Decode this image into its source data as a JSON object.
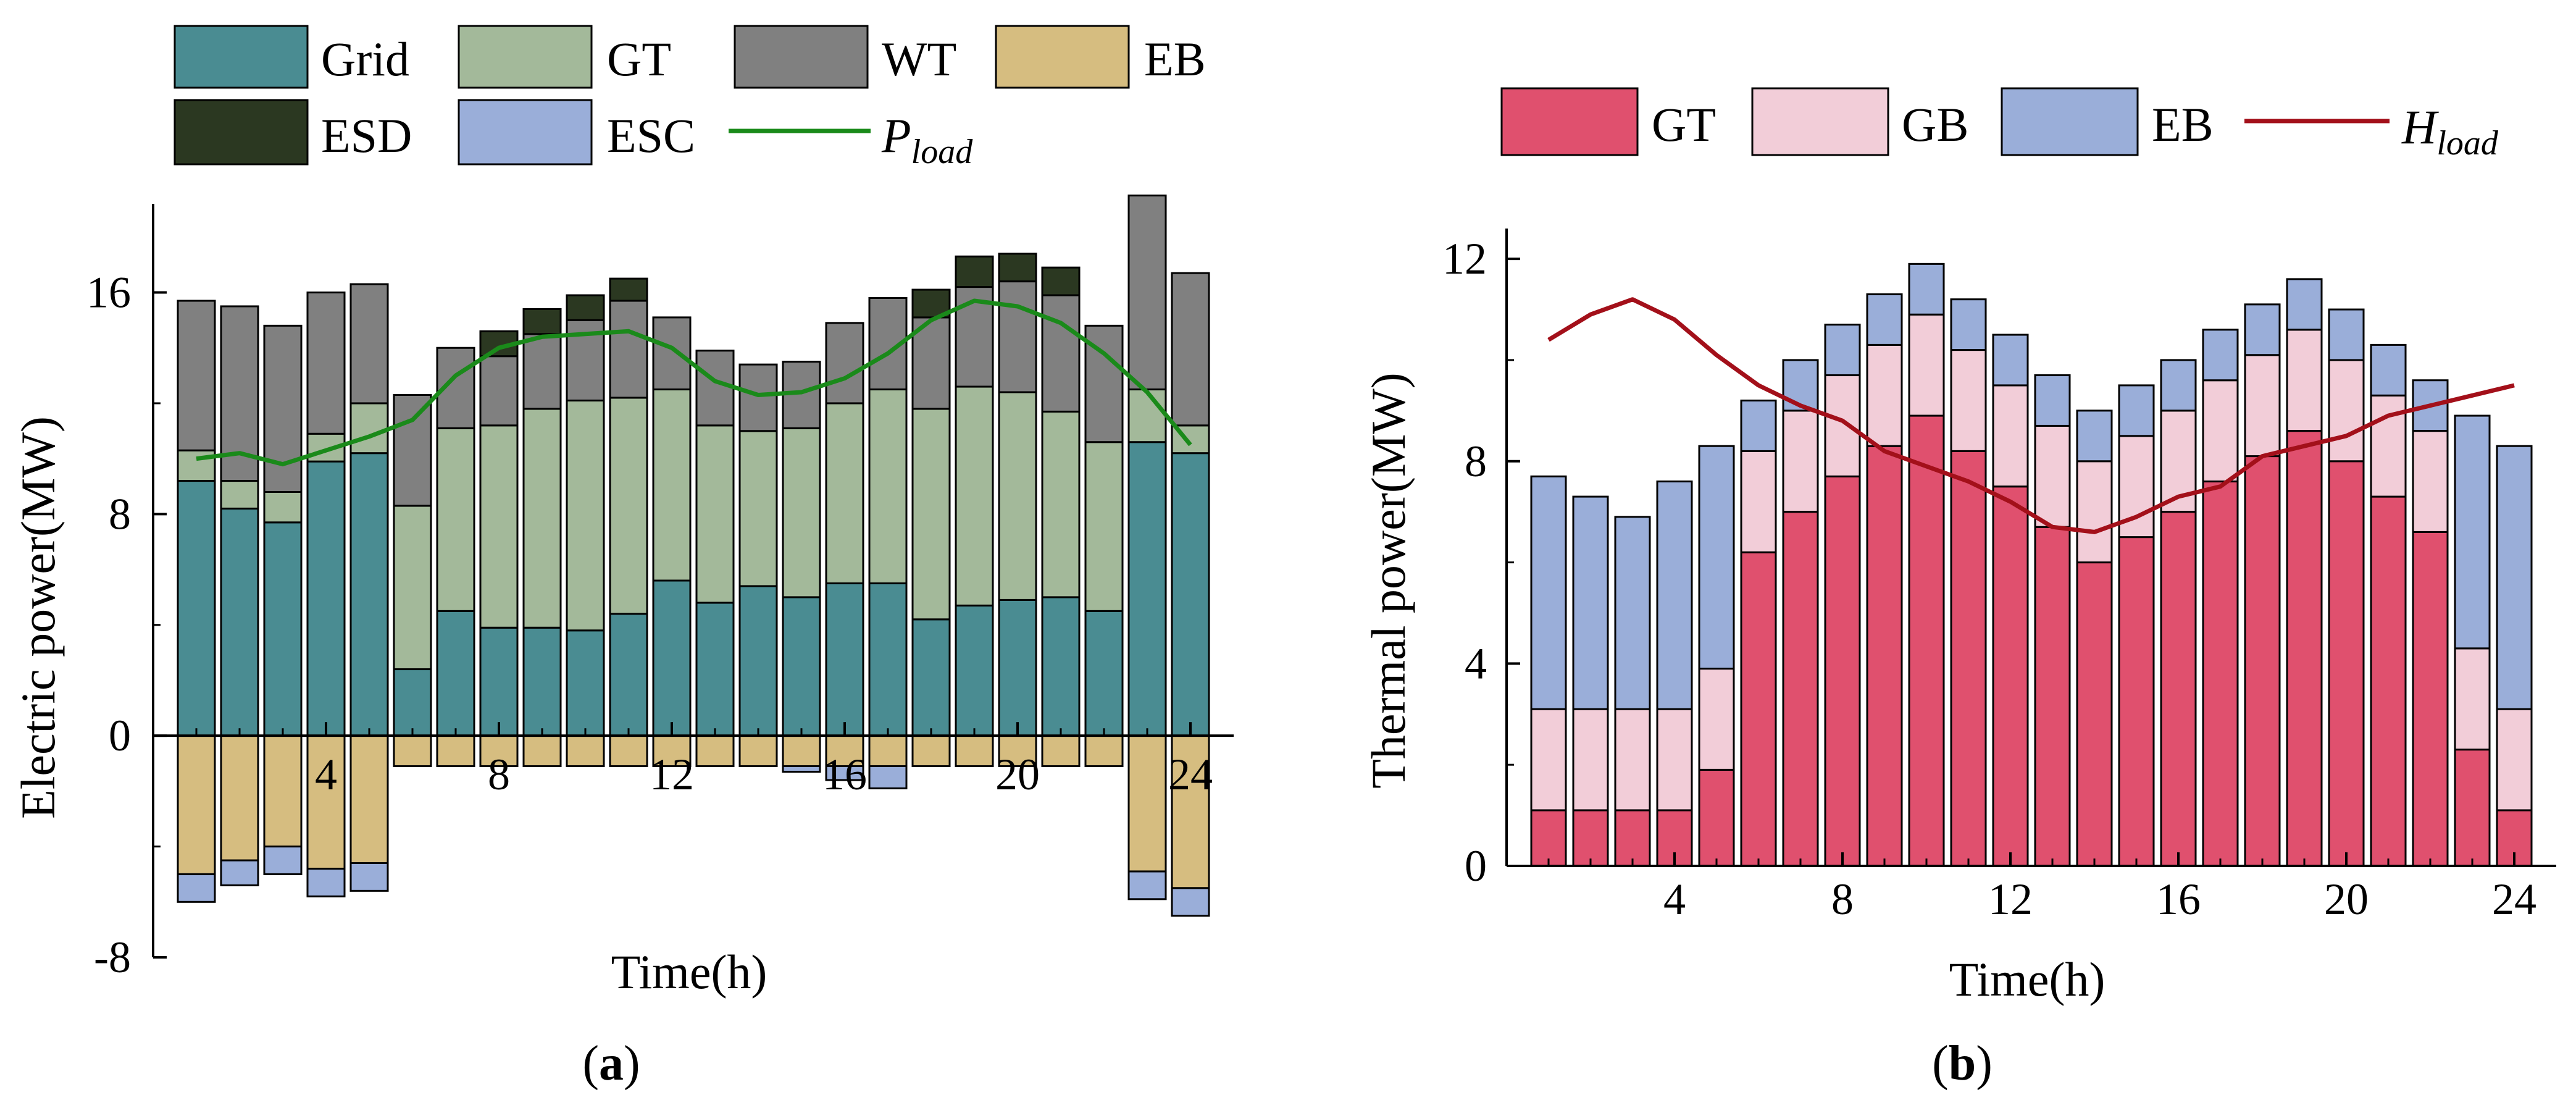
{
  "chart_data": [
    {
      "panel": "a",
      "type": "bar",
      "stacked": true,
      "title": "",
      "xlabel": "Time(h)",
      "ylabel": "Electric power(MW)",
      "xlim": [
        0,
        25
      ],
      "ylim": [
        -8,
        19.2
      ],
      "xticks": [
        4,
        8,
        12,
        16,
        20,
        24
      ],
      "xtick_labels": [
        "4",
        "8",
        "12",
        "16",
        "20",
        "24"
      ],
      "yticks": [
        -8,
        0,
        8,
        16
      ],
      "ytick_labels": [
        "-8",
        "0",
        "8",
        "16"
      ],
      "legend": [
        "Grid",
        "GT",
        "WT",
        "EB",
        "ESD",
        "ESC",
        "P_load"
      ],
      "legend_position": "top",
      "x": [
        1,
        2,
        3,
        4,
        5,
        6,
        7,
        8,
        9,
        10,
        11,
        12,
        13,
        14,
        15,
        16,
        17,
        18,
        19,
        20,
        21,
        22,
        23,
        24
      ],
      "series": [
        {
          "name": "Grid",
          "color": "#4a8c92",
          "values": [
            9.2,
            8.2,
            7.7,
            9.9,
            10.2,
            2.4,
            4.5,
            3.9,
            3.9,
            3.8,
            4.4,
            5.6,
            4.8,
            5.4,
            5.0,
            5.5,
            5.5,
            4.2,
            4.7,
            4.9,
            5.0,
            4.5,
            10.6,
            10.2
          ]
        },
        {
          "name": "GT",
          "color": "#a3b99a",
          "values": [
            1.1,
            1.0,
            1.1,
            1.0,
            1.8,
            5.9,
            6.6,
            7.3,
            7.9,
            8.3,
            7.8,
            6.9,
            6.4,
            5.6,
            6.1,
            6.5,
            7.0,
            7.6,
            7.9,
            7.5,
            6.7,
            6.1,
            1.9,
            1.0
          ]
        },
        {
          "name": "WT",
          "color": "#808080",
          "values": [
            5.4,
            6.3,
            6.0,
            5.1,
            4.3,
            4.0,
            2.9,
            2.5,
            2.7,
            2.9,
            3.5,
            2.6,
            2.7,
            2.4,
            2.4,
            2.9,
            3.3,
            3.3,
            3.6,
            4.0,
            4.2,
            4.2,
            7.0,
            5.5
          ]
        },
        {
          "name": "ESD",
          "color": "#2b3821",
          "values": [
            0,
            0,
            0,
            0,
            0,
            0,
            0,
            0.9,
            0.9,
            0.9,
            0.8,
            0,
            0,
            0,
            0,
            0,
            0,
            1.0,
            1.1,
            1.0,
            1.0,
            0,
            0,
            0
          ]
        },
        {
          "name": "EB",
          "color": "#d6bd80",
          "values": [
            -5.0,
            -4.5,
            -4.0,
            -4.8,
            -4.6,
            -1.1,
            -1.1,
            -1.1,
            -1.1,
            -1.1,
            -1.1,
            -1.1,
            -1.1,
            -1.1,
            -1.1,
            -1.1,
            -1.1,
            -1.1,
            -1.1,
            -1.1,
            -1.1,
            -1.1,
            -4.9,
            -5.5
          ]
        },
        {
          "name": "ESC",
          "color": "#9aaed9",
          "values": [
            -1.0,
            -0.9,
            -1.0,
            -1.0,
            -1.0,
            0,
            0,
            0,
            0,
            0,
            0,
            0,
            0,
            0,
            -0.2,
            -0.5,
            -0.8,
            0,
            0,
            0,
            0,
            0,
            -1.0,
            -1.0
          ]
        }
      ],
      "line": {
        "name": "P_load",
        "color": "#1a8a1a",
        "values": [
          10.0,
          10.2,
          9.8,
          10.3,
          10.8,
          11.4,
          13.0,
          14.0,
          14.4,
          14.5,
          14.6,
          14.0,
          12.8,
          12.3,
          12.4,
          12.9,
          13.8,
          15.0,
          15.7,
          15.5,
          14.9,
          13.8,
          12.4,
          10.5
        ]
      }
    },
    {
      "panel": "b",
      "type": "bar",
      "stacked": true,
      "title": "",
      "xlabel": "Time(h)",
      "ylabel": "Thermal power(MW)",
      "xlim": [
        0,
        25
      ],
      "ylim": [
        0,
        12.6
      ],
      "xticks": [
        4,
        8,
        12,
        16,
        20,
        24
      ],
      "xtick_labels": [
        "4",
        "8",
        "12",
        "16",
        "20",
        "24"
      ],
      "yticks": [
        0,
        4,
        8,
        12
      ],
      "ytick_labels": [
        "0",
        "4",
        "8",
        "12"
      ],
      "legend": [
        "GT",
        "GB",
        "EB",
        "H_load"
      ],
      "legend_position": "top",
      "x": [
        1,
        2,
        3,
        4,
        5,
        6,
        7,
        8,
        9,
        10,
        11,
        12,
        13,
        14,
        15,
        16,
        17,
        18,
        19,
        20,
        21,
        22,
        23,
        24
      ],
      "series": [
        {
          "name": "GT",
          "color": "#e0506e",
          "values": [
            1.1,
            1.1,
            1.1,
            1.1,
            1.9,
            6.2,
            7.0,
            7.7,
            8.3,
            8.9,
            8.2,
            7.5,
            6.7,
            6.0,
            6.5,
            7.0,
            7.6,
            8.1,
            8.6,
            8.0,
            7.3,
            6.6,
            2.3,
            1.1
          ]
        },
        {
          "name": "GB",
          "color": "#f2cdd8",
          "values": [
            2.0,
            2.0,
            2.0,
            2.0,
            2.0,
            2.0,
            2.0,
            2.0,
            2.0,
            2.0,
            2.0,
            2.0,
            2.0,
            2.0,
            2.0,
            2.0,
            2.0,
            2.0,
            2.0,
            2.0,
            2.0,
            2.0,
            2.0,
            2.0
          ]
        },
        {
          "name": "EB",
          "color": "#9aaed9",
          "values": [
            4.6,
            4.2,
            3.8,
            4.5,
            4.4,
            1.0,
            1.0,
            1.0,
            1.0,
            1.0,
            1.0,
            1.0,
            1.0,
            1.0,
            1.0,
            1.0,
            1.0,
            1.0,
            1.0,
            1.0,
            1.0,
            1.0,
            4.6,
            5.2
          ]
        }
      ],
      "line": {
        "name": "H_load",
        "color": "#a3101a",
        "values": [
          10.4,
          10.9,
          11.2,
          10.8,
          10.1,
          9.5,
          9.1,
          8.8,
          8.2,
          7.9,
          7.6,
          7.2,
          6.7,
          6.6,
          6.9,
          7.3,
          7.5,
          8.1,
          8.3,
          8.5,
          8.9,
          9.1,
          9.3,
          9.5
        ]
      }
    }
  ],
  "legend_labels": {
    "a": {
      "grid": "Grid",
      "gt": "GT",
      "wt": "WT",
      "eb": "EB",
      "esd": "ESD",
      "esc": "ESC",
      "pload_main": "P",
      "pload_sub": "load"
    },
    "b": {
      "gt": "GT",
      "gb": "GB",
      "eb": "EB",
      "hload_main": "H",
      "hload_sub": "load"
    }
  },
  "panel_labels": {
    "a": "a",
    "b": "b"
  },
  "colors": {
    "grid": "#4a8c92",
    "gt_a": "#a3b99a",
    "wt": "#808080",
    "eb_a": "#d6bd80",
    "esd": "#2b3821",
    "esc": "#9aaed9",
    "pload": "#1a8a1a",
    "gt_b": "#e0506e",
    "gb": "#f2cdd8",
    "eb_b": "#9aaed9",
    "hload": "#a3101a"
  }
}
